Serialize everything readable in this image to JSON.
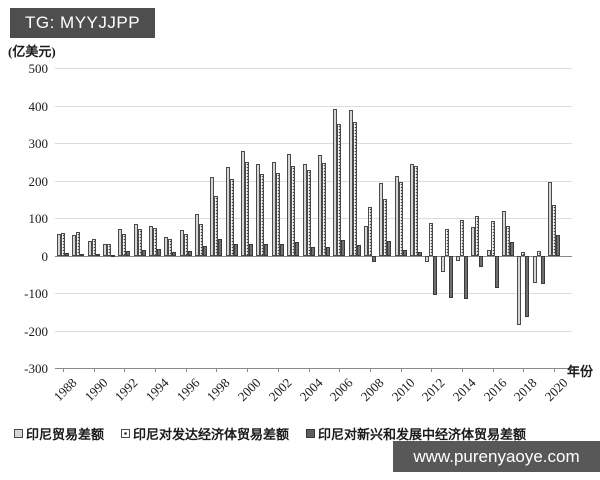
{
  "header": {
    "tag": "TG: MYYJJPP"
  },
  "watermark": {
    "text": "www.purenyaoye.com"
  },
  "chart_data": {
    "type": "bar",
    "title": "",
    "unit_label": "(亿美元)",
    "xlabel": "年份",
    "ylim": [
      -300,
      500
    ],
    "ytick_step": 100,
    "ytick_labels": [
      "500",
      "400",
      "300",
      "200",
      "100",
      "0",
      "-100",
      "-200",
      "-300"
    ],
    "grid": true,
    "legend_position": "bottom",
    "years": [
      1988,
      1989,
      1990,
      1991,
      1992,
      1993,
      1994,
      1995,
      1996,
      1997,
      1998,
      1999,
      2000,
      2001,
      2002,
      2003,
      2004,
      2005,
      2006,
      2007,
      2008,
      2009,
      2010,
      2011,
      2012,
      2013,
      2014,
      2015,
      2016,
      2017,
      2018,
      2019,
      2020
    ],
    "xtick_labels": [
      "1988",
      "1990",
      "1992",
      "1994",
      "1996",
      "1998",
      "2000",
      "2002",
      "2004",
      "2006",
      "2008",
      "2010",
      "2012",
      "2014",
      "2016",
      "2018",
      "2020"
    ],
    "series": [
      {
        "name": "印尼贸易差额",
        "pattern": "solid-light",
        "color": "#d6d6d6",
        "values": [
          58,
          55,
          40,
          30,
          70,
          85,
          80,
          49,
          67,
          110,
          210,
          235,
          280,
          245,
          250,
          270,
          245,
          268,
          390,
          388,
          78,
          193,
          213,
          245,
          -18,
          -45,
          -15,
          75,
          15,
          118,
          -185,
          -73,
          195
        ]
      },
      {
        "name": "印尼对发达经济体贸易差额",
        "pattern": "dotted",
        "color": "#ffffff",
        "values": [
          60,
          63,
          43,
          32,
          57,
          70,
          74,
          43,
          58,
          85,
          160,
          205,
          250,
          218,
          220,
          240,
          228,
          248,
          350,
          355,
          130,
          152,
          196,
          238,
          87,
          70,
          95,
          105,
          92,
          78,
          10,
          12,
          135
        ]
      },
      {
        "name": "印尼对新兴和发展中经济体贸易差额",
        "pattern": "solid-dark",
        "color": "#6f6f6f",
        "values": [
          6,
          5,
          3,
          2,
          12,
          16,
          18,
          10,
          12,
          25,
          45,
          30,
          30,
          30,
          32,
          35,
          22,
          22,
          42,
          28,
          -17,
          39,
          15,
          9,
          -106,
          -112,
          -117,
          -30,
          -86,
          35,
          -165,
          -75,
          56
        ]
      }
    ]
  }
}
